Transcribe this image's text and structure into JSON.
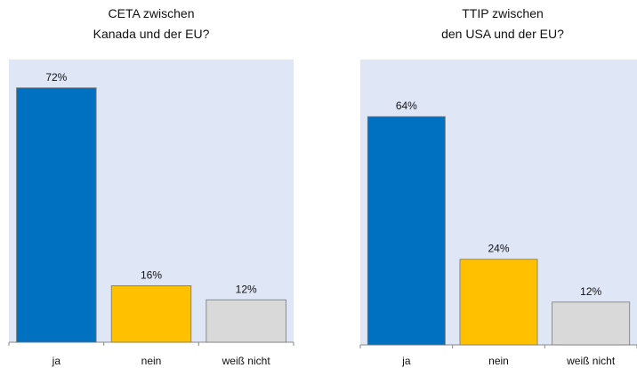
{
  "chart_data": [
    {
      "type": "bar",
      "title": "CETA zwischen\nKanada und der EU?",
      "categories": [
        "ja",
        "nein",
        "weiß nicht"
      ],
      "values": [
        72,
        16,
        12
      ],
      "value_labels": [
        "72%",
        "16%",
        "12%"
      ],
      "colors": [
        "#0070c0",
        "#ffc000",
        "#d9d9d9"
      ],
      "ylim": [
        0,
        80
      ]
    },
    {
      "type": "bar",
      "title": "TTIP zwischen\nden USA und der EU?",
      "categories": [
        "ja",
        "nein",
        "weiß nicht"
      ],
      "values": [
        64,
        24,
        12
      ],
      "value_labels": [
        "64%",
        "24%",
        "12%"
      ],
      "colors": [
        "#0070c0",
        "#ffc000",
        "#d9d9d9"
      ],
      "ylim": [
        0,
        80
      ]
    }
  ]
}
